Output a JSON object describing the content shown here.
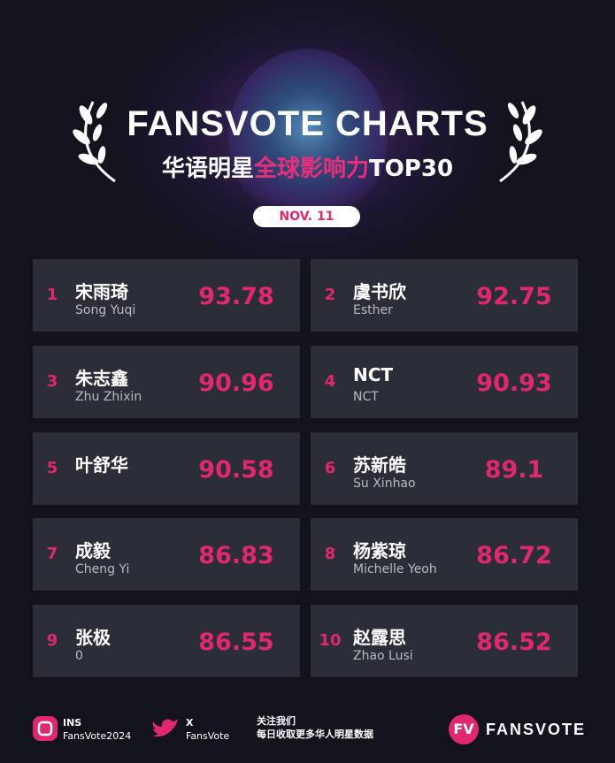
{
  "header": {
    "title": "FANSVOTE CHARTS",
    "subtitle": [
      "华语明星",
      "全球影响力",
      "TOP30"
    ],
    "date": "NOV. 11"
  },
  "ranking": [
    {
      "rank": "1",
      "name": "宋雨琦",
      "subname": "Song Yuqi",
      "score": "93.78"
    },
    {
      "rank": "2",
      "name": "虞书欣",
      "subname": "Esther",
      "score": "92.75"
    },
    {
      "rank": "3",
      "name": "朱志鑫",
      "subname": "Zhu Zhixin",
      "score": "90.96"
    },
    {
      "rank": "4",
      "name": "NCT",
      "subname": "NCT",
      "score": "90.93"
    },
    {
      "rank": "5",
      "name": "叶舒华",
      "score": "90.58"
    },
    {
      "rank": "6",
      "name": "苏新皓",
      "subname": "Su Xinhao",
      "score": "89.1"
    },
    {
      "rank": "7",
      "name": "成毅",
      "subname": "Cheng Yi",
      "score": "86.83"
    },
    {
      "rank": "8",
      "name": "杨紫琼",
      "subname": "Michelle Yeoh",
      "score": "86.72"
    },
    {
      "rank": "9",
      "name": "张极",
      "subname": "0",
      "score": "86.55"
    },
    {
      "rank": "10",
      "name": "赵露思",
      "subname": "Zhao Lusi",
      "score": "86.52"
    }
  ],
  "footer": {
    "ins": {
      "label": "INS",
      "handle": "FansVote2024"
    },
    "x": {
      "label": "X",
      "handle": "FansVote"
    },
    "follow": {
      "label": "关注我们",
      "text": "每日收取更多华人明星数据"
    },
    "logo": {
      "mark": "FV",
      "text": "FANSVOTE"
    }
  }
}
